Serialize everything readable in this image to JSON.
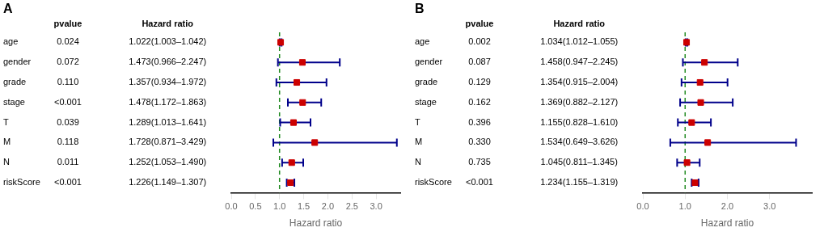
{
  "chart_data": [
    {
      "type": "forest",
      "title": "A",
      "x_label": "Hazard ratio",
      "column_headers": [
        "pvalue",
        "Hazard ratio"
      ],
      "categories": [
        "age",
        "gender",
        "grade",
        "stage",
        "T",
        "M",
        "N",
        "riskScore"
      ],
      "pvalues": [
        "0.024",
        "0.072",
        "0.110",
        "<0.001",
        "0.039",
        "0.118",
        "0.011",
        "<0.001"
      ],
      "hr_labels": [
        "1.022(1.003–1.042)",
        "1.473(0.966–2.247)",
        "1.357(0.934–1.972)",
        "1.478(1.172–1.863)",
        "1.289(1.013–1.641)",
        "1.728(0.871–3.429)",
        "1.252(1.053–1.490)",
        "1.226(1.149–1.307)"
      ],
      "values": [
        1.022,
        1.473,
        1.357,
        1.478,
        1.289,
        1.728,
        1.252,
        1.226
      ],
      "ci_low": [
        1.003,
        0.966,
        0.934,
        1.172,
        1.013,
        0.871,
        1.053,
        1.149
      ],
      "ci_high": [
        1.042,
        2.247,
        1.972,
        1.863,
        1.641,
        3.429,
        1.49,
        1.307
      ],
      "color": "#cc0000",
      "error_bar_color": "#00008B",
      "ref_line": 1.0,
      "ref_line_color": "#228B22",
      "marker": "square",
      "grid": false,
      "xlim": [
        0.0,
        3.5
      ],
      "xticks": [
        {
          "value": 0.0,
          "label": "0.0"
        },
        {
          "value": 0.5,
          "label": "0.5"
        },
        {
          "value": 1.0,
          "label": "1.0"
        },
        {
          "value": 1.5,
          "label": "1.5"
        },
        {
          "value": 2.0,
          "label": "2.0"
        },
        {
          "value": 2.5,
          "label": "2.5"
        },
        {
          "value": 3.0,
          "label": "3.0"
        }
      ]
    },
    {
      "type": "forest",
      "title": "B",
      "x_label": "Hazard ratio",
      "column_headers": [
        "pvalue",
        "Hazard ratio"
      ],
      "categories": [
        "age",
        "gender",
        "grade",
        "stage",
        "T",
        "M",
        "N",
        "riskScore"
      ],
      "pvalues": [
        "0.002",
        "0.087",
        "0.129",
        "0.162",
        "0.396",
        "0.330",
        "0.735",
        "<0.001"
      ],
      "hr_labels": [
        "1.034(1.012–1.055)",
        "1.458(0.947–2.245)",
        "1.354(0.915–2.004)",
        "1.369(0.882–2.127)",
        "1.155(0.828–1.610)",
        "1.534(0.649–3.626)",
        "1.045(0.811–1.345)",
        "1.234(1.155–1.319)"
      ],
      "values": [
        1.034,
        1.458,
        1.354,
        1.369,
        1.155,
        1.534,
        1.045,
        1.234
      ],
      "ci_low": [
        1.012,
        0.947,
        0.915,
        0.882,
        0.828,
        0.649,
        0.811,
        1.155
      ],
      "ci_high": [
        1.055,
        2.245,
        2.004,
        2.127,
        1.61,
        3.626,
        1.345,
        1.319
      ],
      "color": "#cc0000",
      "error_bar_color": "#00008B",
      "ref_line": 1.0,
      "ref_line_color": "#228B22",
      "marker": "square",
      "grid": false,
      "xlim": [
        0.0,
        4.0
      ],
      "xticks": [
        {
          "value": 0.0,
          "label": "0.0"
        },
        {
          "value": 1.0,
          "label": "1.0"
        },
        {
          "value": 2.0,
          "label": "2.0"
        },
        {
          "value": 3.0,
          "label": "3.0"
        }
      ]
    }
  ]
}
